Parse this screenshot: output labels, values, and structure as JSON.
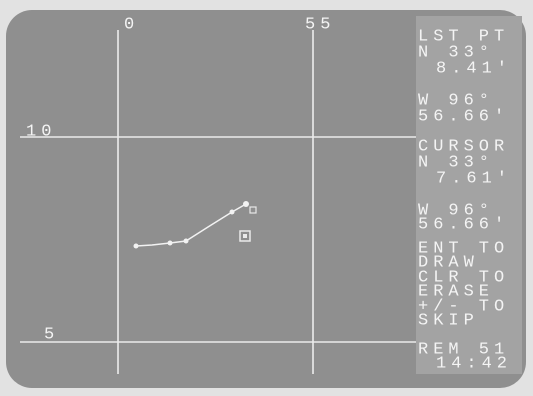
{
  "grid_labels": {
    "top": [
      "0",
      "55"
    ],
    "left": [
      "10",
      "5"
    ]
  },
  "panel": {
    "last_point": {
      "title": "LST PT",
      "lat": [
        "N 33°",
        "8.41'"
      ],
      "lon": [
        "W 96°",
        "56.66'"
      ]
    },
    "cursor": {
      "title": "CURSOR",
      "lat": [
        "N 33°",
        "7.61'"
      ],
      "lon": [
        "W 96°",
        "56.66'"
      ]
    },
    "instructions": [
      "ENT TO",
      "DRAW",
      "CLR TO",
      "ERASE",
      "+/- TO",
      "SKIP"
    ],
    "remaining": "REM 51",
    "time": "14:42"
  }
}
